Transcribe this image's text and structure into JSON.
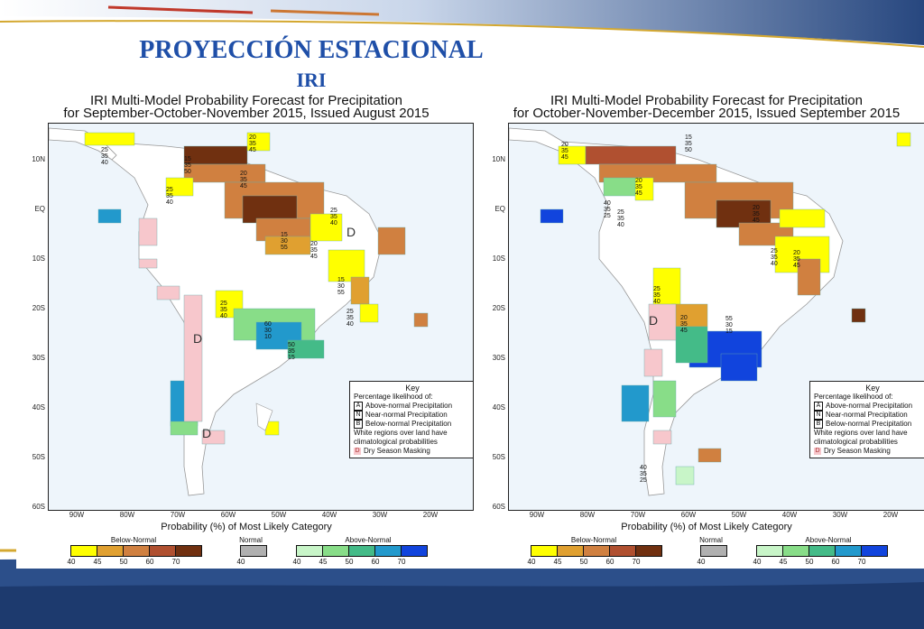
{
  "slide": {
    "title": "PROYECCIÓN ESTACIONAL",
    "subtitle": "IRI"
  },
  "colors": {
    "below": [
      "#ffff00",
      "#e0a030",
      "#d08040",
      "#b05030",
      "#703010"
    ],
    "normal": "#b0b0b0",
    "above": [
      "#c8f5c8",
      "#88dd88",
      "#44bb88",
      "#2299cc",
      "#1144dd"
    ],
    "dry_mask": "#f7c7cc"
  },
  "maps": [
    {
      "title_line1": "IRI Multi-Model Probability Forecast for Precipitation",
      "title_line2": "for September-October-November 2015, Issued August 2015"
    },
    {
      "title_line1": "IRI Multi-Model Probability Forecast for Precipitation",
      "title_line2": "for October-November-December 2015, Issued September 2015"
    }
  ],
  "axes": {
    "lat_labels": [
      "10N",
      "EQ",
      "10S",
      "20S",
      "30S",
      "40S",
      "50S",
      "60S"
    ],
    "lon_labels": [
      "90W",
      "80W",
      "70W",
      "60W",
      "50W",
      "40W",
      "30W",
      "20W"
    ]
  },
  "key": {
    "title": "Key",
    "subtitle": "Percentage likelihood of:",
    "items": [
      {
        "code": "A",
        "text": "Above-normal Precipitation"
      },
      {
        "code": "N",
        "text": "Near-normal Precipitation"
      },
      {
        "code": "B",
        "text": "Below-normal Precipitation"
      }
    ],
    "note_line1": "White regions over land have",
    "note_line2": "climatological probabilities",
    "dry_code": "D",
    "dry_text": "Dry Season Masking"
  },
  "legend": {
    "title": "Probability (%) of Most Likely Category",
    "below_label": "Below-Normal",
    "normal_label": "Normal",
    "above_label": "Above-Normal",
    "below_ticks": [
      "40",
      "45",
      "50",
      "60",
      "70"
    ],
    "normal_ticks": [
      "40"
    ],
    "above_ticks": [
      "40",
      "45",
      "50",
      "60",
      "70"
    ]
  },
  "map_labels": {
    "left": [
      {
        "t": [
          "25",
          "35",
          "40"
        ]
      },
      {
        "t": [
          "20",
          "35",
          "45"
        ]
      },
      {
        "t": [
          "15",
          "35",
          "50"
        ]
      },
      {
        "t": [
          "20",
          "35",
          "45"
        ]
      },
      {
        "t": [
          "25",
          "35",
          "40"
        ]
      },
      {
        "t": [
          "25",
          "35",
          "40"
        ]
      },
      {
        "t": [
          "15",
          "30",
          "55"
        ]
      },
      {
        "t": [
          "15",
          "30",
          "55"
        ]
      },
      {
        "t": [
          "20",
          "35",
          "45"
        ]
      },
      {
        "t": [
          "25",
          "35",
          "40"
        ]
      },
      {
        "t": [
          "25",
          "35",
          "40"
        ]
      },
      {
        "t": [
          "60",
          "30",
          "10"
        ]
      },
      {
        "t": [
          "50",
          "35",
          "15"
        ]
      },
      {
        "t": [
          "D"
        ]
      },
      {
        "t": [
          "D"
        ]
      },
      {
        "t": [
          "D"
        ]
      }
    ],
    "right": [
      {
        "t": [
          "20",
          "35",
          "45"
        ]
      },
      {
        "t": [
          "15",
          "35",
          "50"
        ]
      },
      {
        "t": [
          "20",
          "35",
          "45"
        ]
      },
      {
        "t": [
          "25",
          "35",
          "40"
        ]
      },
      {
        "t": [
          "40",
          "35",
          "25"
        ]
      },
      {
        "t": [
          "20",
          "35",
          "45"
        ]
      },
      {
        "t": [
          "25",
          "35",
          "40"
        ]
      },
      {
        "t": [
          "20",
          "35",
          "45"
        ]
      },
      {
        "t": [
          "25",
          "35",
          "40"
        ]
      },
      {
        "t": [
          "20",
          "35",
          "45"
        ]
      },
      {
        "t": [
          "55",
          "30",
          "15"
        ]
      },
      {
        "t": [
          "40",
          "35",
          "25"
        ]
      },
      {
        "t": [
          "D"
        ]
      }
    ]
  }
}
